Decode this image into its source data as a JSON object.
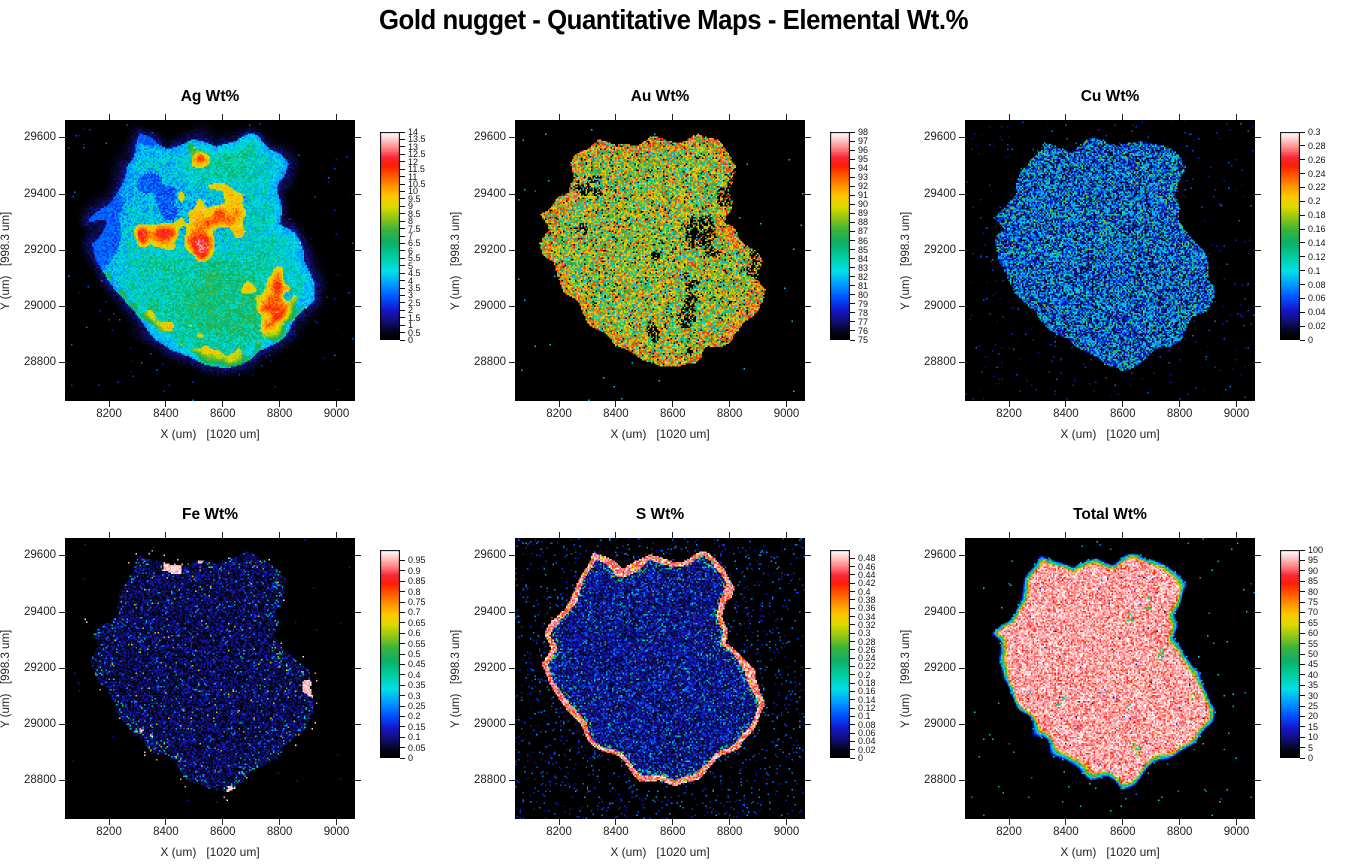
{
  "page": {
    "title": "Gold nugget - Quantitative Maps - Elemental Wt.%"
  },
  "axes": {
    "x_label": "X (um)   [1020 um]",
    "y_label": "Y (um)   [998.3 um]",
    "x_ticks": [
      "8200",
      "8400",
      "8600",
      "8800",
      "9000"
    ],
    "y_ticks": [
      "28800",
      "29000",
      "29200",
      "29400",
      "29600"
    ],
    "x_range": [
      8045,
      9065
    ],
    "y_range": [
      28665,
      29663
    ]
  },
  "colormap": [
    [
      0.0,
      [
        0,
        0,
        0
      ]
    ],
    [
      0.04,
      [
        5,
        5,
        30
      ]
    ],
    [
      0.09,
      [
        16,
        16,
        122
      ]
    ],
    [
      0.14,
      [
        22,
        22,
        200
      ]
    ],
    [
      0.2,
      [
        0,
        80,
        255
      ]
    ],
    [
      0.27,
      [
        0,
        160,
        255
      ]
    ],
    [
      0.33,
      [
        0,
        224,
        232
      ]
    ],
    [
      0.4,
      [
        0,
        207,
        160
      ]
    ],
    [
      0.47,
      [
        15,
        175,
        100
      ]
    ],
    [
      0.53,
      [
        60,
        180,
        60
      ]
    ],
    [
      0.59,
      [
        150,
        200,
        20
      ]
    ],
    [
      0.64,
      [
        220,
        220,
        0
      ]
    ],
    [
      0.69,
      [
        255,
        200,
        0
      ]
    ],
    [
      0.74,
      [
        255,
        150,
        0
      ]
    ],
    [
      0.79,
      [
        255,
        90,
        0
      ]
    ],
    [
      0.84,
      [
        255,
        30,
        0
      ]
    ],
    [
      0.88,
      [
        250,
        40,
        60
      ]
    ],
    [
      0.92,
      [
        255,
        128,
        128
      ]
    ],
    [
      0.96,
      [
        255,
        195,
        195
      ]
    ],
    [
      1.0,
      [
        255,
        255,
        255
      ]
    ]
  ],
  "nugget_outline": [
    [
      0.25,
      0.1
    ],
    [
      0.27,
      0.058
    ],
    [
      0.32,
      0.08
    ],
    [
      0.365,
      0.103
    ],
    [
      0.415,
      0.082
    ],
    [
      0.468,
      0.062
    ],
    [
      0.52,
      0.08
    ],
    [
      0.578,
      0.068
    ],
    [
      0.638,
      0.058
    ],
    [
      0.69,
      0.085
    ],
    [
      0.728,
      0.118
    ],
    [
      0.762,
      0.168
    ],
    [
      0.748,
      0.215
    ],
    [
      0.722,
      0.262
    ],
    [
      0.738,
      0.312
    ],
    [
      0.726,
      0.368
    ],
    [
      0.78,
      0.418
    ],
    [
      0.826,
      0.468
    ],
    [
      0.838,
      0.53
    ],
    [
      0.866,
      0.592
    ],
    [
      0.848,
      0.652
    ],
    [
      0.808,
      0.703
    ],
    [
      0.778,
      0.742
    ],
    [
      0.742,
      0.772
    ],
    [
      0.7,
      0.795
    ],
    [
      0.66,
      0.818
    ],
    [
      0.622,
      0.858
    ],
    [
      0.552,
      0.89
    ],
    [
      0.488,
      0.878
    ],
    [
      0.428,
      0.843
    ],
    [
      0.358,
      0.798
    ],
    [
      0.298,
      0.753
    ],
    [
      0.243,
      0.698
    ],
    [
      0.193,
      0.638
    ],
    [
      0.148,
      0.568
    ],
    [
      0.113,
      0.498
    ],
    [
      0.098,
      0.438
    ],
    [
      0.13,
      0.383
    ],
    [
      0.094,
      0.343
    ],
    [
      0.13,
      0.298
    ],
    [
      0.176,
      0.258
    ],
    [
      0.186,
      0.208
    ],
    [
      0.206,
      0.148
    ]
  ],
  "maps": [
    {
      "id": "ag",
      "title": "Ag Wt%",
      "style": "ag",
      "seed": 11,
      "scale_min": 0,
      "bar_max": 14,
      "ticks": [
        "14",
        "13.5",
        "13",
        "12.5",
        "12",
        "11.5",
        "11",
        "10.5",
        "10",
        "9.5",
        "9",
        "8.5",
        "8",
        "7.5",
        "7",
        "6.5",
        "6",
        "5.5",
        "5",
        "4.5",
        "4",
        "3.5",
        "3",
        "2.5",
        "2",
        "1.5",
        "1",
        "0.5",
        "0"
      ]
    },
    {
      "id": "au",
      "title": "Au Wt%",
      "style": "au",
      "seed": 22,
      "scale_min": 75,
      "bar_max": 98,
      "ticks": [
        "98",
        "97",
        "96",
        "95",
        "94",
        "93",
        "92",
        "91",
        "90",
        "89",
        "88",
        "87",
        "86",
        "85",
        "84",
        "83",
        "82",
        "81",
        "80",
        "79",
        "78",
        "77",
        "76",
        "75"
      ]
    },
    {
      "id": "cu",
      "title": "Cu Wt%",
      "style": "cu",
      "seed": 33,
      "scale_min": 0,
      "bar_max": 0.3,
      "ticks": [
        "0.3",
        "0.28",
        "0.26",
        "0.24",
        "0.22",
        "0.2",
        "0.18",
        "0.16",
        "0.14",
        "0.12",
        "0.1",
        "0.08",
        "0.06",
        "0.04",
        "0.02",
        "0"
      ]
    },
    {
      "id": "fe",
      "title": "Fe Wt%",
      "style": "fe",
      "seed": 44,
      "scale_min": 0,
      "bar_max": 1.0,
      "ticks": [
        "0.95",
        "0.9",
        "0.85",
        "0.8",
        "0.75",
        "0.7",
        "0.65",
        "0.6",
        "0.55",
        "0.5",
        "0.45",
        "0.4",
        "0.35",
        "0.3",
        "0.25",
        "0.2",
        "0.15",
        "0.1",
        "0.05",
        "0"
      ]
    },
    {
      "id": "s",
      "title": "S Wt%",
      "style": "s",
      "seed": 55,
      "scale_min": 0,
      "bar_max": 0.5,
      "ticks": [
        "0.48",
        "0.46",
        "0.44",
        "0.42",
        "0.4",
        "0.38",
        "0.36",
        "0.34",
        "0.32",
        "0.3",
        "0.28",
        "0.26",
        "0.24",
        "0.22",
        "0.2",
        "0.18",
        "0.16",
        "0.14",
        "0.12",
        "0.1",
        "0.08",
        "0.06",
        "0.04",
        "0.02",
        "0"
      ]
    },
    {
      "id": "total",
      "title": "Total Wt%",
      "style": "total",
      "seed": 66,
      "scale_min": 0,
      "bar_max": 100,
      "ticks": [
        "100",
        "95",
        "90",
        "85",
        "80",
        "75",
        "70",
        "65",
        "60",
        "55",
        "50",
        "45",
        "40",
        "35",
        "30",
        "25",
        "20",
        "15",
        "10",
        "5",
        "0"
      ]
    }
  ],
  "chart_data": {
    "type": "heatmap",
    "title": "Gold nugget - Quantitative Maps - Elemental Wt.%",
    "xlabel": "X (um)   [1020 um]",
    "ylabel": "Y (um)   [998.3 um]",
    "x_ticks": [
      8200,
      8400,
      8600,
      8800,
      9000
    ],
    "y_ticks": [
      28800,
      29000,
      29200,
      29400,
      29600
    ],
    "x_span_um": 1020,
    "y_span_um": 998.3,
    "grid": false,
    "legend_position": "right-colorbar",
    "panels": [
      {
        "title": "Ag Wt%",
        "scale_range": [
          0,
          14
        ],
        "tick_step": 0.5,
        "appearance": "cyan-green nugget, blue rim and blue patches, many orange-red hotspots 9-12"
      },
      {
        "title": "Au Wt%",
        "scale_range": [
          75,
          98
        ],
        "tick_step": 1,
        "appearance": "dense orange/green/cyan speckle ~80-95 with black pores"
      },
      {
        "title": "Cu Wt%",
        "scale_range": [
          0,
          0.3
        ],
        "tick_step": 0.02,
        "appearance": "dark blue-cyan speckle ~0.02-0.12 with green specks"
      },
      {
        "title": "Fe Wt%",
        "scale_range": [
          0,
          1.0
        ],
        "tick_step": 0.05,
        "appearance": "very dark navy speckle ~0-0.1, white patches ~0.95 along left rim"
      },
      {
        "title": "S Wt%",
        "scale_range": [
          0,
          0.5
        ],
        "tick_step": 0.02,
        "appearance": "dark blue speckle ~0-0.15 with bright white rim ~0.45-0.5 around outline"
      },
      {
        "title": "Total Wt%",
        "scale_range": [
          0,
          100
        ],
        "tick_step": 5,
        "appearance": "pink-white speckle ~90-100, rainbow transition rim, sparse colored specks"
      }
    ]
  }
}
